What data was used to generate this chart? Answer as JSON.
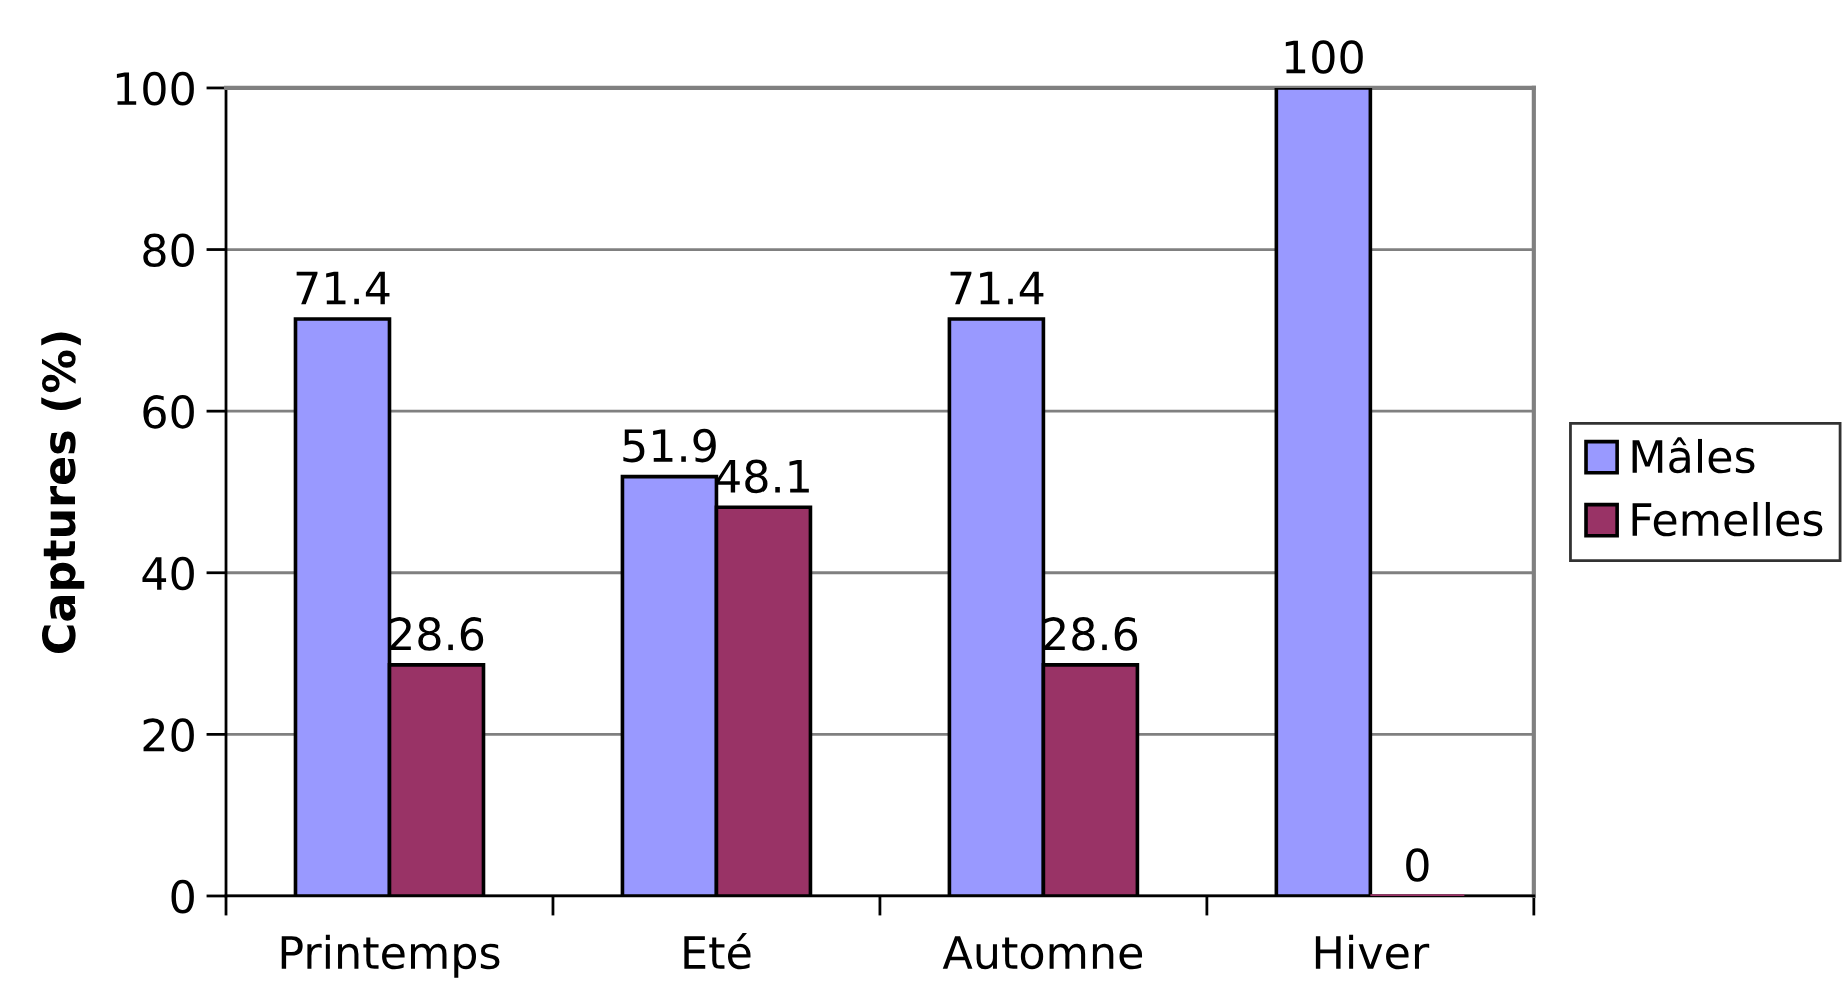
{
  "chart_data": {
    "type": "bar",
    "ylabel": "Captures (%)",
    "categories": [
      "Printemps",
      "Eté",
      "Automne",
      "Hiver"
    ],
    "series": [
      {
        "name": "Mâles",
        "color": "#9999ff",
        "values": [
          71.4,
          51.9,
          71.4,
          100
        ]
      },
      {
        "name": "Femelles",
        "color": "#993366",
        "values": [
          28.6,
          48.1,
          28.6,
          0
        ]
      }
    ],
    "ylim": [
      0,
      100
    ],
    "yticks": [
      0,
      20,
      40,
      60,
      80,
      100
    ],
    "grid": "y",
    "legend": "right",
    "data_labels": true
  }
}
